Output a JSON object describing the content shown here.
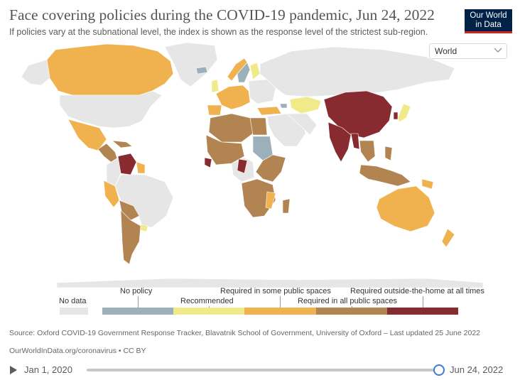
{
  "header": {
    "title": "Face covering policies during the COVID-19 pandemic, Jun 24, 2022",
    "subtitle": "If policies vary at the subnational level, the index is shown as the response level of the strictest sub-region."
  },
  "logo": {
    "line1": "Our World",
    "line2": "in Data"
  },
  "region_select": {
    "value": "World",
    "icon": "chevron-down-icon"
  },
  "colors": {
    "no_data": "#e6e6e6",
    "no_policy": "#9bb0bb",
    "recommended": "#f1ea8a",
    "some_public": "#f0b24f",
    "all_public": "#b28452",
    "outside_home": "#872b30",
    "ocean": "#ffffff",
    "accent": "#3b7bd1"
  },
  "map": {
    "regions": [
      {
        "name": "Canada",
        "category": "some_public"
      },
      {
        "name": "United States",
        "category": "no_data"
      },
      {
        "name": "Mexico",
        "category": "some_public"
      },
      {
        "name": "Central America",
        "category": "all_public"
      },
      {
        "name": "Venezuela",
        "category": "outside_home"
      },
      {
        "name": "Colombia",
        "category": "no_data"
      },
      {
        "name": "Guyana",
        "category": "some_public"
      },
      {
        "name": "Brazil",
        "category": "no_data"
      },
      {
        "name": "Peru",
        "category": "some_public"
      },
      {
        "name": "Bolivia",
        "category": "all_public"
      },
      {
        "name": "Chile / Argentina",
        "category": "all_public"
      },
      {
        "name": "Uruguay",
        "category": "recommended"
      },
      {
        "name": "Greenland",
        "category": "no_data"
      },
      {
        "name": "Iceland",
        "category": "no_policy"
      },
      {
        "name": "Norway",
        "category": "some_public"
      },
      {
        "name": "Sweden",
        "category": "no_policy"
      },
      {
        "name": "Finland",
        "category": "recommended"
      },
      {
        "name": "United Kingdom",
        "category": "recommended"
      },
      {
        "name": "Western Europe",
        "category": "some_public"
      },
      {
        "name": "Eastern Europe",
        "category": "no_data"
      },
      {
        "name": "Russia",
        "category": "no_data"
      },
      {
        "name": "Kazakhstan",
        "category": "recommended"
      },
      {
        "name": "Turkey",
        "category": "some_public"
      },
      {
        "name": "Georgia",
        "category": "no_policy"
      },
      {
        "name": "China",
        "category": "outside_home"
      },
      {
        "name": "India",
        "category": "outside_home"
      },
      {
        "name": "Myanmar",
        "category": "outside_home"
      },
      {
        "name": "South Korea",
        "category": "outside_home"
      },
      {
        "name": "Japan",
        "category": "recommended"
      },
      {
        "name": "Southeast Asia",
        "category": "all_public"
      },
      {
        "name": "Indonesia",
        "category": "all_public"
      },
      {
        "name": "Papua New Guinea",
        "category": "some_public"
      },
      {
        "name": "Australia",
        "category": "some_public"
      },
      {
        "name": "New Zealand",
        "category": "some_public"
      },
      {
        "name": "Middle East",
        "category": "no_data"
      },
      {
        "name": "Iran",
        "category": "no_data"
      },
      {
        "name": "North Africa",
        "category": "all_public"
      },
      {
        "name": "Egypt",
        "category": "all_public"
      },
      {
        "name": "Sudan",
        "category": "no_policy"
      },
      {
        "name": "West Africa",
        "category": "all_public"
      },
      {
        "name": "Sierra Leone / Liberia",
        "category": "outside_home"
      },
      {
        "name": "Central Africa",
        "category": "no_data"
      },
      {
        "name": "Congo",
        "category": "outside_home"
      },
      {
        "name": "East Africa",
        "category": "all_public"
      },
      {
        "name": "Southern Africa",
        "category": "all_public"
      },
      {
        "name": "Madagascar",
        "category": "all_public"
      },
      {
        "name": "Mozambique",
        "category": "some_public"
      },
      {
        "name": "Antarctica",
        "category": "no_data"
      }
    ]
  },
  "legend": {
    "no_data": "No data",
    "no_policy": "No policy",
    "recommended": "Recommended",
    "some_public": "Required in some public spaces",
    "all_public": "Required in all public spaces",
    "outside_home": "Required outside-the-home at all times"
  },
  "source": {
    "text": "Source: Oxford COVID-19 Government Response Tracker, Blavatnik School of Government, University of Oxford – Last updated 25 June 2022",
    "url": "OurWorldInData.org/coronavirus • CC BY"
  },
  "timeline": {
    "start": "Jan 1, 2020",
    "end": "Jun 24, 2022",
    "position": 1.0
  }
}
